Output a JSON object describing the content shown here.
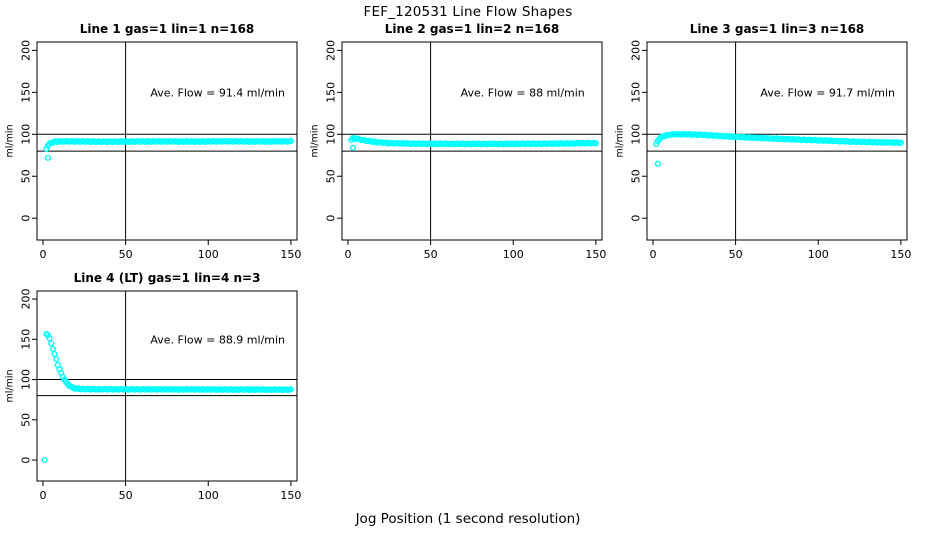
{
  "chart_data": {
    "type": "scatter",
    "title": "FEF_120531  Line Flow Shapes",
    "xlabel": "Jog Position (1 second resolution)",
    "ylabel": "ml/min",
    "point_color": "#00FFFF",
    "axis_color": "#000000",
    "ref_line_color": "#000000",
    "x_ticks": [
      0,
      50,
      100,
      150
    ],
    "y_ticks": [
      0,
      50,
      100,
      150,
      200
    ],
    "xlim": [
      -3.6,
      153.7
    ],
    "ylim": [
      -26,
      210
    ],
    "ref_h_lines": [
      100,
      80
    ],
    "ref_v_line": 50,
    "grid": false,
    "legend": "none",
    "panels": [
      {
        "title": "Line 1 gas=1 lin=1 n=168",
        "line": 1,
        "gas": 1,
        "lin": 1,
        "n": 168,
        "annotation": "Ave. Flow =  91.4  ml/min",
        "ave_flow": 91.4,
        "x_start": 2,
        "x_end": 150,
        "anchors": [
          [
            2,
            83
          ],
          [
            3,
            86.5
          ],
          [
            4,
            88.5
          ],
          [
            5,
            90
          ],
          [
            7,
            91
          ],
          [
            10,
            91.5
          ],
          [
            20,
            91.5
          ],
          [
            35,
            91.2
          ],
          [
            50,
            91.3
          ],
          [
            70,
            91.5
          ],
          [
            90,
            91.3
          ],
          [
            110,
            91.6
          ],
          [
            130,
            91.4
          ],
          [
            150,
            91.5
          ]
        ],
        "outliers": [
          [
            3,
            72
          ]
        ]
      },
      {
        "title": "Line 2 gas=1 lin=2 n=168",
        "line": 2,
        "gas": 1,
        "lin": 2,
        "n": 168,
        "annotation": "Ave. Flow =  88  ml/min",
        "ave_flow": 88,
        "x_start": 2,
        "x_end": 150,
        "anchors": [
          [
            2,
            93.5
          ],
          [
            3,
            95
          ],
          [
            5,
            95
          ],
          [
            8,
            93.5
          ],
          [
            12,
            92
          ],
          [
            18,
            90.5
          ],
          [
            25,
            89.5
          ],
          [
            35,
            89
          ],
          [
            50,
            88.7
          ],
          [
            70,
            88.5
          ],
          [
            90,
            88.5
          ],
          [
            110,
            88.7
          ],
          [
            130,
            89
          ],
          [
            150,
            89.5
          ]
        ],
        "outliers": [
          [
            3,
            84
          ]
        ]
      },
      {
        "title": "Line 3 gas=1 lin=3 n=168",
        "line": 3,
        "gas": 1,
        "lin": 3,
        "n": 168,
        "annotation": "Ave. Flow =  91.7  ml/min",
        "ave_flow": 91.7,
        "x_start": 2,
        "x_end": 150,
        "anchors": [
          [
            2,
            88
          ],
          [
            3,
            92
          ],
          [
            4,
            95
          ],
          [
            6,
            97.5
          ],
          [
            9,
            99
          ],
          [
            13,
            100
          ],
          [
            20,
            100
          ],
          [
            30,
            99.3
          ],
          [
            45,
            97.5
          ],
          [
            60,
            96
          ],
          [
            80,
            94.3
          ],
          [
            100,
            92.8
          ],
          [
            120,
            91.3
          ],
          [
            135,
            90.5
          ],
          [
            150,
            90
          ]
        ],
        "outliers": [
          [
            3,
            65
          ]
        ]
      },
      {
        "title": "Line 4 (LT) gas=1 lin=4 n=3",
        "line": 4,
        "gas": 1,
        "lin": 4,
        "n": 3,
        "annotation": "Ave. Flow =  88.9  ml/min",
        "ave_flow": 88.9,
        "x_start": 2,
        "x_end": 150,
        "anchors": [
          [
            2,
            157
          ],
          [
            3,
            155.5
          ],
          [
            4,
            151
          ],
          [
            5,
            145
          ],
          [
            6,
            138.5
          ],
          [
            7,
            131.5
          ],
          [
            8,
            125
          ],
          [
            9,
            118.5
          ],
          [
            10,
            113
          ],
          [
            11,
            108
          ],
          [
            12,
            103.5
          ],
          [
            13,
            100
          ],
          [
            14,
            97
          ],
          [
            15,
            94.5
          ],
          [
            16,
            92.5
          ],
          [
            17,
            91
          ],
          [
            18,
            90
          ],
          [
            19,
            89.3
          ],
          [
            20,
            88.8
          ],
          [
            23,
            88.2
          ],
          [
            28,
            88
          ],
          [
            40,
            87.9
          ],
          [
            60,
            87.8
          ],
          [
            90,
            87.7
          ],
          [
            120,
            87.6
          ],
          [
            150,
            87.5
          ]
        ],
        "outliers": [
          [
            1,
            0
          ]
        ]
      }
    ]
  }
}
